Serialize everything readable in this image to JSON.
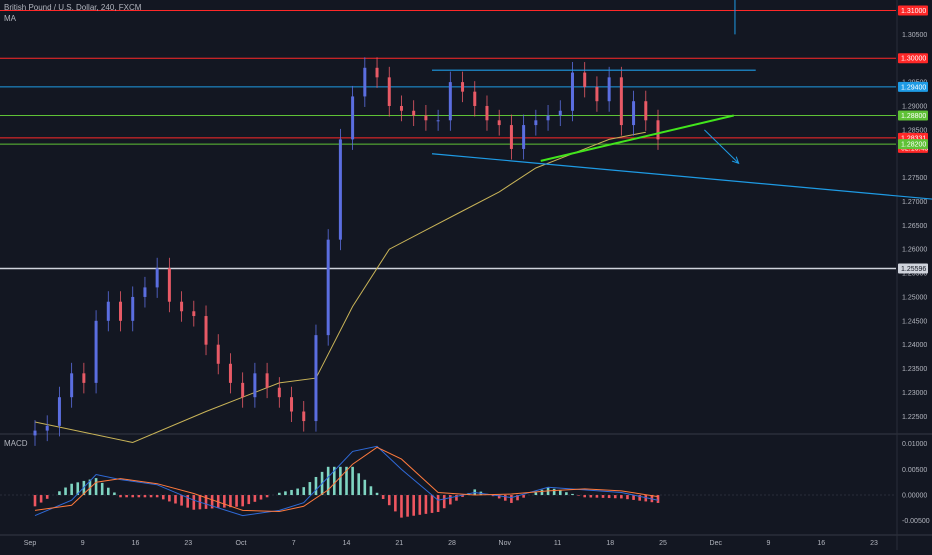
{
  "header": {
    "title": "British Pound / U.S. Dollar, 240, FXCM",
    "indicator": "MA"
  },
  "macd_panel": {
    "label": "MACD"
  },
  "colors": {
    "background": "#131722",
    "bull": "#5b6ee0",
    "bear": "#e85a66",
    "ma": "#c9b458",
    "red_level": "#ff2828",
    "blue_level": "#1e9be5",
    "green_level": "#5fc236",
    "white_level": "#cfd3dc",
    "bright_green": "#42e51c",
    "macd_line": "#2f6ad8",
    "signal_line": "#ff7a3d",
    "hist_pos": "#7fd5c2",
    "hist_neg": "#ee5660",
    "axis_text": "#b2b5be"
  },
  "chart_data": {
    "type": "candlestick",
    "symbol": "British Pound / U.S. Dollar",
    "interval": "240",
    "source": "FXCM",
    "x_tick_labels": [
      "Sep",
      "9",
      "16",
      "23",
      "Oct",
      "7",
      "14",
      "21",
      "28",
      "Nov",
      "11",
      "18",
      "25",
      "Dec",
      "9",
      "16",
      "23"
    ],
    "price_axis": {
      "ylim": [
        1.2215,
        1.3122
      ],
      "ticks": [
        "1.30500",
        "1.29500",
        "1.29000",
        "1.28500",
        "1.27500",
        "1.27000",
        "1.26500",
        "1.26000",
        "1.25500",
        "1.25000",
        "1.24500",
        "1.24000",
        "1.23500",
        "1.23000",
        "1.22500"
      ]
    },
    "close_series": [
      [
        0,
        1.222
      ],
      [
        1,
        1.223
      ],
      [
        2,
        1.229
      ],
      [
        3,
        1.234
      ],
      [
        4,
        1.232
      ],
      [
        5,
        1.245
      ],
      [
        6,
        1.249
      ],
      [
        7,
        1.245
      ],
      [
        8,
        1.25
      ],
      [
        9,
        1.252
      ],
      [
        10,
        1.256
      ],
      [
        11,
        1.249
      ],
      [
        12,
        1.247
      ],
      [
        13,
        1.246
      ],
      [
        14,
        1.24
      ],
      [
        15,
        1.236
      ],
      [
        16,
        1.232
      ],
      [
        17,
        1.229
      ],
      [
        18,
        1.234
      ],
      [
        19,
        1.231
      ],
      [
        20,
        1.229
      ],
      [
        21,
        1.226
      ],
      [
        22,
        1.224
      ],
      [
        23,
        1.242
      ],
      [
        24,
        1.262
      ],
      [
        25,
        1.283
      ],
      [
        26,
        1.292
      ],
      [
        27,
        1.298
      ],
      [
        28,
        1.296
      ],
      [
        29,
        1.29
      ],
      [
        30,
        1.289
      ],
      [
        31,
        1.288
      ],
      [
        32,
        1.287
      ],
      [
        33,
        1.287
      ],
      [
        34,
        1.295
      ],
      [
        35,
        1.293
      ],
      [
        36,
        1.29
      ],
      [
        37,
        1.287
      ],
      [
        38,
        1.286
      ],
      [
        39,
        1.281
      ],
      [
        40,
        1.286
      ],
      [
        41,
        1.287
      ],
      [
        42,
        1.288
      ],
      [
        43,
        1.289
      ],
      [
        44,
        1.297
      ],
      [
        45,
        1.294
      ],
      [
        46,
        1.291
      ],
      [
        47,
        1.296
      ],
      [
        48,
        1.286
      ],
      [
        49,
        1.291
      ],
      [
        50,
        1.287
      ],
      [
        51,
        1.283
      ]
    ],
    "moving_average": [
      [
        0,
        1.2238
      ],
      [
        8,
        1.2195
      ],
      [
        14,
        1.226
      ],
      [
        20,
        1.232
      ],
      [
        23,
        1.233
      ],
      [
        26,
        1.248
      ],
      [
        29,
        1.26
      ],
      [
        32,
        1.264
      ],
      [
        35,
        1.268
      ],
      [
        38,
        1.272
      ],
      [
        41,
        1.277
      ],
      [
        44,
        1.28
      ],
      [
        47,
        1.283
      ],
      [
        50,
        1.2845
      ]
    ],
    "levels": [
      {
        "price": 1.31,
        "label": "1.31000",
        "color": "red"
      },
      {
        "price": 1.3,
        "label": "1.30000",
        "color": "red"
      },
      {
        "price": 1.294,
        "label": "1.29400",
        "color": "blue"
      },
      {
        "price": 1.288,
        "label": "1.28800",
        "color": "green"
      },
      {
        "price": 1.28331,
        "label": "1.28331",
        "sublabel": "02:16:45",
        "color": "red"
      },
      {
        "price": 1.282,
        "label": "1.28200",
        "color": "green"
      },
      {
        "price": 1.25596,
        "label": "1.25596",
        "color": "white"
      }
    ],
    "trendlines": [
      {
        "from": [
          32.5,
          1.2975
        ],
        "to": [
          59.0,
          1.2975
        ],
        "color": "blue"
      },
      {
        "from": [
          32.5,
          1.28
        ],
        "to": [
          70.0,
          1.2705
        ],
        "color": "blue"
      },
      {
        "from": [
          41.4,
          1.2785
        ],
        "to": [
          57.2,
          1.288
        ],
        "color": "green"
      }
    ],
    "arrow": {
      "from": [
        54.8,
        1.285
      ],
      "to": [
        57.6,
        1.278
      ]
    },
    "vertical_marker": {
      "x": 57.3,
      "from": 1.3122,
      "to": 1.305
    },
    "macd": {
      "ylim": [
        -0.0072,
        0.0115
      ],
      "ticks": [
        "0.01000",
        "0.00500",
        "0.00000",
        "-0.00500"
      ],
      "macd_line": [
        [
          0,
          -0.004
        ],
        [
          3,
          -0.001
        ],
        [
          5,
          0.004
        ],
        [
          7,
          0.003
        ],
        [
          10,
          0.002
        ],
        [
          13,
          -0.001
        ],
        [
          17,
          -0.004
        ],
        [
          20,
          -0.003
        ],
        [
          22,
          -0.0015
        ],
        [
          24,
          0.0035
        ],
        [
          26,
          0.0085
        ],
        [
          28,
          0.0095
        ],
        [
          30,
          0.005
        ],
        [
          33,
          -0.001
        ],
        [
          36,
          0.0005
        ],
        [
          39,
          -0.0005
        ],
        [
          42,
          0.0015
        ],
        [
          45,
          0.001
        ],
        [
          48,
          0.0005
        ],
        [
          51,
          -0.001
        ]
      ],
      "signal_line": [
        [
          0,
          -0.003
        ],
        [
          3,
          -0.002
        ],
        [
          5,
          0.0025
        ],
        [
          7,
          0.0032
        ],
        [
          10,
          0.0022
        ],
        [
          13,
          0.0003
        ],
        [
          17,
          -0.003
        ],
        [
          20,
          -0.0032
        ],
        [
          22,
          -0.0022
        ],
        [
          24,
          0.001
        ],
        [
          26,
          0.006
        ],
        [
          28,
          0.0093
        ],
        [
          30,
          0.007
        ],
        [
          33,
          0.0005
        ],
        [
          36,
          0.0
        ],
        [
          39,
          0.0002
        ],
        [
          42,
          0.0008
        ],
        [
          45,
          0.0012
        ],
        [
          48,
          0.0008
        ],
        [
          51,
          -0.0003
        ]
      ]
    }
  }
}
